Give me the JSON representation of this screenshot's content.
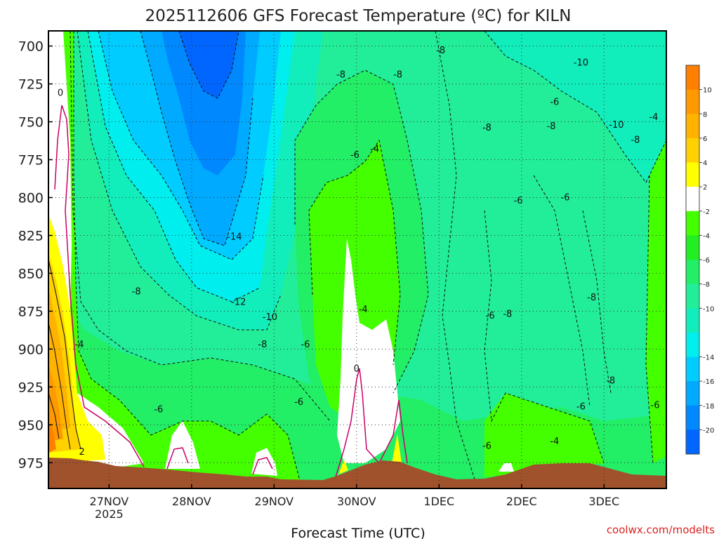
{
  "chart_data": {
    "type": "heatmap",
    "subtype": "filled-contour time-pressure cross-section",
    "title": "2025112606 GFS Forecast Temperature (ºC) for KILN",
    "xlabel": "Forecast Time (UTC)",
    "ylabel": "",
    "credit": "coolwx.com/modelts",
    "y_axis": {
      "type": "pressure",
      "inverted": true,
      "ylim": [
        690,
        992
      ],
      "ticks": [
        700,
        725,
        750,
        775,
        800,
        825,
        850,
        875,
        900,
        925,
        950,
        975
      ]
    },
    "x_axis": {
      "range_days_from_27NOV_00Z": [
        -0.735,
        6.755
      ],
      "ticks": [
        {
          "label": "27NOV",
          "sublabel": "2025",
          "day": 0
        },
        {
          "label": "28NOV",
          "sublabel": "",
          "day": 1
        },
        {
          "label": "29NOV",
          "sublabel": "",
          "day": 2
        },
        {
          "label": "30NOV",
          "sublabel": "",
          "day": 3
        },
        {
          "label": "1DEC",
          "sublabel": "",
          "day": 4
        },
        {
          "label": "2DEC",
          "sublabel": "",
          "day": 5
        },
        {
          "label": "3DEC",
          "sublabel": "",
          "day": 6
        }
      ]
    },
    "grid": "dotted",
    "colorbar": {
      "placement": "right",
      "bands": [
        {
          "from": 10,
          "to": 12,
          "color": "#ff7f00"
        },
        {
          "from": 8,
          "to": 10,
          "color": "#ff9900"
        },
        {
          "from": 6,
          "to": 8,
          "color": "#ffb300"
        },
        {
          "from": 4,
          "to": 6,
          "color": "#ffd100"
        },
        {
          "from": 2,
          "to": 4,
          "color": "#ffff00"
        },
        {
          "from": -2,
          "to": 2,
          "color": "#ffffff"
        },
        {
          "from": -4,
          "to": -2,
          "color": "#44ff00"
        },
        {
          "from": -6,
          "to": -4,
          "color": "#22ee22"
        },
        {
          "from": -8,
          "to": -6,
          "color": "#22ee66"
        },
        {
          "from": -10,
          "to": -8,
          "color": "#22ee99"
        },
        {
          "from": -12,
          "to": -10,
          "color": "#11eebb"
        },
        {
          "from": -14,
          "to": -12,
          "color": "#00eeee"
        },
        {
          "from": -16,
          "to": -14,
          "color": "#00ccff"
        },
        {
          "from": -18,
          "to": -16,
          "color": "#00aaff"
        },
        {
          "from": -20,
          "to": -18,
          "color": "#0088ff"
        },
        {
          "from": -22,
          "to": -20,
          "color": "#0066ff"
        }
      ],
      "tick_labels": [
        "10",
        "8",
        "6",
        "4",
        "2",
        "-2",
        "-4",
        "-6",
        "-8",
        "-10",
        "-14",
        "-16",
        "-18",
        "-20"
      ],
      "tick_values": [
        10,
        8,
        6,
        4,
        2,
        -2,
        -4,
        -6,
        -8,
        -10,
        -14,
        -16,
        -18,
        -20
      ]
    },
    "ground_color": "#a0522d",
    "contour_labels": [
      {
        "text": "0",
        "day": -0.59,
        "p": 731
      },
      {
        "text": "-4",
        "day": -0.36,
        "p": 897
      },
      {
        "text": "2",
        "day": -0.33,
        "p": 968
      },
      {
        "text": "-6",
        "day": 0.6,
        "p": 940
      },
      {
        "text": "-8",
        "day": 0.33,
        "p": 862
      },
      {
        "text": "-14",
        "day": 1.52,
        "p": 826
      },
      {
        "text": "-12",
        "day": 1.57,
        "p": 869
      },
      {
        "text": "-10",
        "day": 1.95,
        "p": 879
      },
      {
        "text": "-8",
        "day": 1.86,
        "p": 897
      },
      {
        "text": "-6",
        "day": 2.38,
        "p": 897
      },
      {
        "text": "-6",
        "day": 2.3,
        "p": 935
      },
      {
        "text": "-8",
        "day": 2.81,
        "p": 719
      },
      {
        "text": "-8",
        "day": 3.5,
        "p": 719
      },
      {
        "text": "-4",
        "day": 3.22,
        "p": 768
      },
      {
        "text": "-6",
        "day": 2.98,
        "p": 772
      },
      {
        "text": "-4",
        "day": 3.08,
        "p": 874
      },
      {
        "text": "0",
        "day": 3.0,
        "p": 913
      },
      {
        "text": "-8",
        "day": 4.02,
        "p": 703
      },
      {
        "text": "-8",
        "day": 4.58,
        "p": 754
      },
      {
        "text": "-8",
        "day": 4.83,
        "p": 877
      },
      {
        "text": "-6",
        "day": 4.62,
        "p": 878
      },
      {
        "text": "-6",
        "day": 4.58,
        "p": 964
      },
      {
        "text": "-6",
        "day": 4.96,
        "p": 802
      },
      {
        "text": "-6",
        "day": 5.53,
        "p": 800
      },
      {
        "text": "-4",
        "day": 5.4,
        "p": 961
      },
      {
        "text": "-10",
        "day": 5.72,
        "p": 711
      },
      {
        "text": "-6",
        "day": 5.4,
        "p": 737
      },
      {
        "text": "-8",
        "day": 5.36,
        "p": 753
      },
      {
        "text": "-10",
        "day": 6.15,
        "p": 752
      },
      {
        "text": "-8",
        "day": 6.38,
        "p": 762
      },
      {
        "text": "-4",
        "day": 6.6,
        "p": 747
      },
      {
        "text": "-8",
        "day": 5.85,
        "p": 866
      },
      {
        "text": "-8",
        "day": 6.08,
        "p": 921
      },
      {
        "text": "-6",
        "day": 5.72,
        "p": 938
      },
      {
        "text": "-6",
        "day": 6.62,
        "p": 937
      }
    ]
  }
}
